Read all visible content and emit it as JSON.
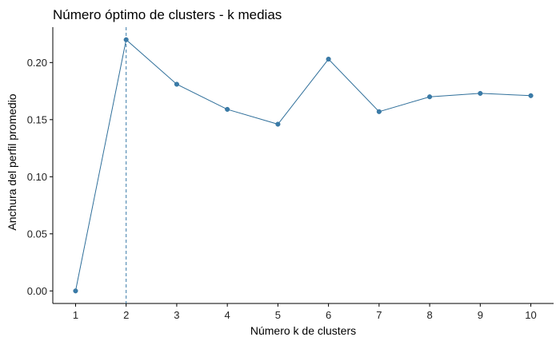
{
  "chart_data": {
    "type": "line",
    "title": "Número óptimo de clusters - k medias",
    "xlabel": "Número k de clusters",
    "ylabel": "Anchura del perfil promedio",
    "x": [
      1,
      2,
      3,
      4,
      5,
      6,
      7,
      8,
      9,
      10
    ],
    "y": [
      0.0,
      0.22,
      0.181,
      0.159,
      0.146,
      0.203,
      0.157,
      0.17,
      0.173,
      0.171
    ],
    "xticks": [
      1,
      2,
      3,
      4,
      5,
      6,
      7,
      8,
      9,
      10
    ],
    "yticks": [
      0.0,
      0.05,
      0.1,
      0.15,
      0.2
    ],
    "ytick_labels": [
      "0.00",
      "0.05",
      "0.10",
      "0.15",
      "0.20"
    ],
    "ylim": [
      -0.011,
      0.231
    ],
    "xlim": [
      0.55,
      10.45
    ],
    "optimal_k": 2,
    "grid": false,
    "colors": {
      "series": "#2f6f9a",
      "points": "#3a7ba8"
    }
  }
}
